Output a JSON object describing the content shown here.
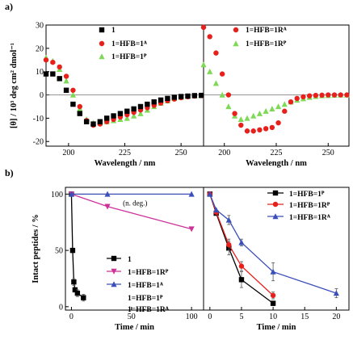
{
  "panel_labels": [
    "a)",
    "b)"
  ],
  "chart_data": [
    {
      "id": "a-left",
      "type": "scatter",
      "xlabel": "Wavelength / nm",
      "ylabel": "[θ] / 10³ deg cm² dmol⁻¹",
      "xlim": [
        190,
        260
      ],
      "ylim": [
        -22,
        30
      ],
      "xticks": [
        "200",
        "225",
        "250"
      ],
      "xtick_values": [
        200,
        225,
        250
      ],
      "yticks": [
        "-20",
        "-10",
        "0",
        "10",
        "20",
        "30"
      ],
      "ytick_values": [
        -20,
        -10,
        0,
        10,
        20,
        30
      ],
      "legend_position": "top-right",
      "series": [
        {
          "name": "1",
          "color": "#000000",
          "marker": "square",
          "x": [
            190,
            193,
            196,
            199,
            202,
            205,
            208,
            211,
            214,
            217,
            220,
            223,
            226,
            229,
            232,
            235,
            238,
            241,
            244,
            247,
            250,
            253,
            256,
            259
          ],
          "y": [
            9,
            9,
            7,
            2,
            -4,
            -8,
            -11.5,
            -12.5,
            -11.5,
            -10,
            -9,
            -8,
            -7,
            -6,
            -5,
            -4,
            -3,
            -2.2,
            -1.5,
            -1,
            -0.7,
            -0.5,
            -0.3,
            -0.2
          ]
        },
        {
          "name": "1=HFB=1ᴬ",
          "color": "#e8201c",
          "marker": "circle",
          "x": [
            190,
            193,
            196,
            199,
            202,
            205,
            208,
            211,
            214,
            217,
            220,
            223,
            226,
            229,
            232,
            235,
            238,
            241,
            244,
            247,
            250,
            253,
            256,
            259
          ],
          "y": [
            15,
            14,
            12,
            8,
            2,
            -5,
            -11,
            -13,
            -12.5,
            -11.5,
            -10.5,
            -9.5,
            -8.5,
            -7.5,
            -6.5,
            -5.5,
            -4.5,
            -3.5,
            -2.5,
            -1.8,
            -1.2,
            -0.8,
            -0.5,
            -0.3
          ]
        },
        {
          "name": "1=HFB=1ᴾ",
          "color": "#7ed957",
          "marker": "triangle",
          "x": [
            190,
            193,
            196,
            199,
            202,
            205,
            208,
            211,
            214,
            217,
            220,
            223,
            226,
            229,
            232,
            235,
            238,
            241,
            244,
            247,
            250,
            253,
            256,
            259
          ],
          "y": [
            16,
            14.5,
            11,
            6,
            0,
            -6,
            -10.5,
            -12,
            -12,
            -11.5,
            -11,
            -10.5,
            -10,
            -9,
            -8,
            -6.5,
            -5,
            -3.5,
            -2.5,
            -1.5,
            -1,
            -0.6,
            -0.3,
            -0.2
          ]
        }
      ]
    },
    {
      "id": "a-right",
      "type": "scatter",
      "xlabel": "Wavelength / nm",
      "xlim": [
        190,
        260
      ],
      "ylim": [
        -22,
        30
      ],
      "xticks": [
        "200",
        "225",
        "250"
      ],
      "xtick_values": [
        200,
        225,
        250
      ],
      "legend_position": "top-right",
      "series": [
        {
          "name": "1=HFB=1Rᴬ",
          "color": "#e8201c",
          "marker": "circle",
          "x": [
            190,
            193,
            196,
            199,
            202,
            205,
            208,
            211,
            214,
            217,
            220,
            223,
            226,
            229,
            232,
            235,
            238,
            241,
            244,
            247,
            250,
            253,
            256,
            259
          ],
          "y": [
            29,
            25,
            18,
            9,
            0,
            -8,
            -13,
            -15.5,
            -15.5,
            -15,
            -14.5,
            -14,
            -12,
            -7,
            -3,
            -1.5,
            -0.8,
            -0.4,
            -0.2,
            -0.1,
            0,
            0,
            0,
            0
          ]
        },
        {
          "name": "1=HFB=1Rᴾ",
          "color": "#7ed957",
          "marker": "triangle",
          "x": [
            190,
            193,
            196,
            199,
            202,
            205,
            208,
            211,
            214,
            217,
            220,
            223,
            226,
            229,
            232,
            235,
            238,
            241,
            244,
            247,
            250,
            253,
            256,
            259
          ],
          "y": [
            13,
            10,
            5,
            0,
            -5,
            -9,
            -10.5,
            -10,
            -9,
            -8,
            -7,
            -6,
            -5,
            -4,
            -3,
            -2.2,
            -1.6,
            -1,
            -0.6,
            -0.3,
            -0.2,
            -0.1,
            0,
            0
          ]
        }
      ]
    },
    {
      "id": "b-left",
      "type": "line",
      "xlabel": "Time / min",
      "ylabel": "Intact peptides / %",
      "xlim": [
        -5,
        110
      ],
      "ylim": [
        -3,
        106
      ],
      "xticks": [
        "0",
        "50",
        "100"
      ],
      "xtick_values": [
        0,
        50,
        100
      ],
      "yticks": [
        "0",
        "50",
        "100"
      ],
      "ytick_values": [
        0,
        50,
        100
      ],
      "annotation": "(n. deg.)",
      "legend_position": "bottom-right",
      "series": [
        {
          "name": "1",
          "color": "#000000",
          "marker": "square",
          "x": [
            0,
            1,
            2,
            3,
            5,
            10
          ],
          "y": [
            100,
            50,
            22,
            15,
            12,
            8
          ],
          "err": [
            0,
            0,
            3,
            0,
            3,
            3
          ]
        },
        {
          "name": "1=HFB=1Rᴾ",
          "color": "#cc3399",
          "marker": "triangle-down",
          "x": [
            0,
            30,
            100
          ],
          "y": [
            100,
            89,
            69
          ],
          "err": [
            0,
            0,
            0
          ]
        },
        {
          "name": "1=HFB=1ᴬ",
          "color": "#3a4fb8",
          "marker": "triangle",
          "x": [
            0,
            30,
            100
          ],
          "y": [
            100,
            100,
            100
          ],
          "err": [
            0,
            0,
            0
          ]
        },
        {
          "name": "1=HFB=1ᴾ",
          "color": "#000000",
          "marker": "none",
          "x": [],
          "y": []
        },
        {
          "name": "1=HFB=1Rᴬ",
          "color": "#000000",
          "marker": "none",
          "x": [],
          "y": []
        }
      ]
    },
    {
      "id": "b-right",
      "type": "line",
      "xlabel": "Time / min",
      "xlim": [
        -1,
        22
      ],
      "ylim": [
        -3,
        106
      ],
      "xticks": [
        "0",
        "5",
        "10",
        "15",
        "20"
      ],
      "xtick_values": [
        0,
        5,
        10,
        15,
        20
      ],
      "legend_position": "top-right",
      "series": [
        {
          "name": "1=HFB=1ᴾ",
          "color": "#000000",
          "marker": "square",
          "x": [
            0,
            1,
            3,
            5,
            10
          ],
          "y": [
            100,
            83,
            52,
            24,
            3
          ],
          "err": [
            0,
            0,
            6,
            7,
            2
          ]
        },
        {
          "name": "1=HFB=1Rᴾ",
          "color": "#e8201c",
          "marker": "circle",
          "x": [
            0,
            1,
            3,
            5,
            10
          ],
          "y": [
            100,
            84,
            55,
            36,
            10
          ],
          "err": [
            0,
            0,
            5,
            4,
            3
          ]
        },
        {
          "name": "1=HFB=1Rᴬ",
          "color": "#3a4fb8",
          "marker": "triangle",
          "x": [
            0,
            1,
            3,
            5,
            10,
            20
          ],
          "y": [
            100,
            86,
            77,
            57,
            31,
            12
          ],
          "err": [
            0,
            0,
            4,
            3,
            8,
            4
          ]
        }
      ]
    }
  ]
}
